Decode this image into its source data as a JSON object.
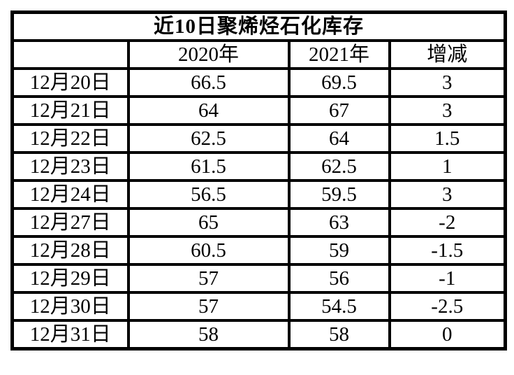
{
  "title": "近10日聚烯烃石化库存",
  "header": {
    "col_date": "",
    "col_2020": "2020年",
    "col_2021": "2021年",
    "col_change": "增减"
  },
  "rows": [
    {
      "date": "12月20日",
      "y2020": "66.5",
      "y2021": "69.5",
      "change": "3"
    },
    {
      "date": "12月21日",
      "y2020": "64",
      "y2021": "67",
      "change": "3"
    },
    {
      "date": "12月22日",
      "y2020": "62.5",
      "y2021": "64",
      "change": "1.5"
    },
    {
      "date": "12月23日",
      "y2020": "61.5",
      "y2021": "62.5",
      "change": "1"
    },
    {
      "date": "12月24日",
      "y2020": "56.5",
      "y2021": "59.5",
      "change": "3"
    },
    {
      "date": "12月27日",
      "y2020": "65",
      "y2021": "63",
      "change": "-2"
    },
    {
      "date": "12月28日",
      "y2020": "60.5",
      "y2021": "59",
      "change": "-1.5"
    },
    {
      "date": "12月29日",
      "y2020": "57",
      "y2021": "56",
      "change": "-1"
    },
    {
      "date": "12月30日",
      "y2020": "57",
      "y2021": "54.5",
      "change": "-2.5"
    },
    {
      "date": "12月31日",
      "y2020": "58",
      "y2021": "58",
      "change": "0"
    }
  ],
  "colors": {
    "title_bg": "#c00000",
    "title_fg": "#ffffff",
    "border": "#000000",
    "cell_bg": "#ffffff"
  },
  "chart_data": {
    "type": "table",
    "title": "近10日聚烯烃石化库存",
    "categories": [
      "12月20日",
      "12月21日",
      "12月22日",
      "12月23日",
      "12月24日",
      "12月27日",
      "12月28日",
      "12月29日",
      "12月30日",
      "12月31日"
    ],
    "series": [
      {
        "name": "2020年",
        "values": [
          66.5,
          64,
          62.5,
          61.5,
          56.5,
          65,
          60.5,
          57,
          57,
          58
        ]
      },
      {
        "name": "2021年",
        "values": [
          69.5,
          67,
          64,
          62.5,
          59.5,
          63,
          59,
          56,
          54.5,
          58
        ]
      },
      {
        "name": "增减",
        "values": [
          3,
          3,
          1.5,
          1,
          3,
          -2,
          -1.5,
          -1,
          -2.5,
          0
        ]
      }
    ],
    "legend_position": "none",
    "grid": true
  }
}
